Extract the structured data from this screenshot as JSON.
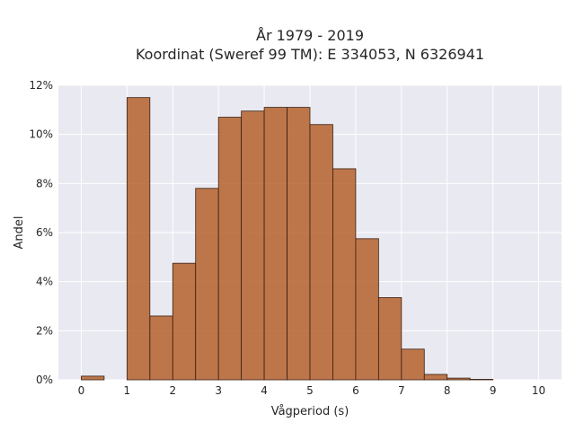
{
  "chart_data": {
    "type": "bar",
    "title_line1": "År 1979 - 2019",
    "title_line2": "Koordinat (Sweref 99 TM): E 334053, N 6326941",
    "xlabel": "Vågperiod (s)",
    "ylabel": "Andel",
    "xlim": [
      -0.5,
      10.5
    ],
    "ylim": [
      0,
      12
    ],
    "x_ticks": [
      0,
      1,
      2,
      3,
      4,
      5,
      6,
      7,
      8,
      9,
      10
    ],
    "y_ticks": [
      0,
      2,
      4,
      6,
      8,
      10,
      12
    ],
    "y_tick_labels": [
      "0%",
      "2%",
      "4%",
      "6%",
      "8%",
      "10%",
      "12%"
    ],
    "bin_width": 0.5,
    "bins": [
      {
        "start": 0.0,
        "value": 0.15
      },
      {
        "start": 0.5,
        "value": 0.0
      },
      {
        "start": 1.0,
        "value": 11.5
      },
      {
        "start": 1.5,
        "value": 2.6
      },
      {
        "start": 2.0,
        "value": 4.75
      },
      {
        "start": 2.5,
        "value": 7.8
      },
      {
        "start": 3.0,
        "value": 10.7
      },
      {
        "start": 3.5,
        "value": 10.95
      },
      {
        "start": 4.0,
        "value": 11.1
      },
      {
        "start": 4.5,
        "value": 11.1
      },
      {
        "start": 5.0,
        "value": 10.4
      },
      {
        "start": 5.5,
        "value": 8.6
      },
      {
        "start": 6.0,
        "value": 5.75
      },
      {
        "start": 6.5,
        "value": 3.35
      },
      {
        "start": 7.0,
        "value": 1.25
      },
      {
        "start": 7.5,
        "value": 0.22
      },
      {
        "start": 8.0,
        "value": 0.07
      },
      {
        "start": 8.5,
        "value": 0.02
      }
    ],
    "grid": true,
    "colors": {
      "plot_background": "#e9e9f1",
      "bar_fill": "#b4622d",
      "bar_edge": "#3a1f10",
      "grid": "#ffffff"
    }
  }
}
